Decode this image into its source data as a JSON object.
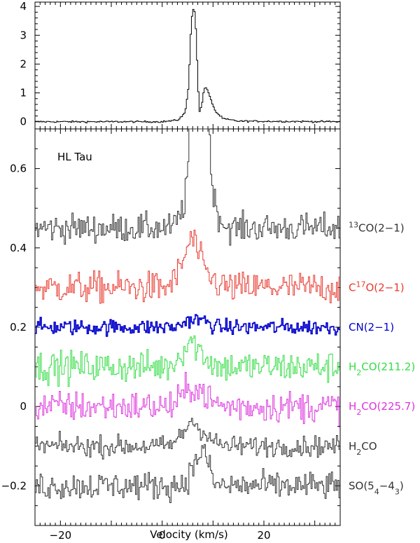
{
  "chart_data": [
    {
      "panel": "top",
      "type": "line",
      "step": true,
      "xlim": [
        -25,
        35
      ],
      "ylim": [
        -0.25,
        4.15
      ],
      "yticks": [
        0,
        1,
        2,
        3,
        4
      ],
      "ytick_labels": [
        "0",
        "1",
        "2",
        "3",
        "4"
      ],
      "grid": false,
      "series": [
        {
          "color": "#000000",
          "points": [
            [
              -25,
              0
            ],
            [
              0,
              0
            ],
            [
              3,
              0.05
            ],
            [
              4.5,
              0.3
            ],
            [
              5.2,
              1.2
            ],
            [
              5.6,
              3.0
            ],
            [
              6.0,
              3.95
            ],
            [
              6.5,
              3.8
            ],
            [
              6.9,
              2.0
            ],
            [
              7.3,
              0.3
            ],
            [
              7.8,
              0.6
            ],
            [
              8.2,
              1.1
            ],
            [
              8.7,
              1.2
            ],
            [
              9.5,
              0.8
            ],
            [
              10.5,
              0.35
            ],
            [
              12,
              0.1
            ],
            [
              15,
              0.02
            ],
            [
              35,
              0
            ]
          ],
          "noise": 0.015
        }
      ]
    },
    {
      "panel": "bottom",
      "type": "line",
      "step": true,
      "source": "HL Tau",
      "xlim": [
        -25,
        35
      ],
      "ylim": [
        -0.3,
        0.7
      ],
      "xticks": [
        -20,
        0,
        20
      ],
      "xtick_labels": [
        "−20",
        "0",
        "20"
      ],
      "yticks": [
        -0.2,
        0,
        0.2,
        0.4,
        0.6
      ],
      "ytick_labels": [
        "−0.2",
        "0",
        "0.2",
        "0.4",
        "0.6"
      ],
      "xlabel": "Velocity (km/s)",
      "grid": false,
      "series": [
        {
          "id": "co13",
          "main": "",
          "sup": "13",
          "tail": "CO(2−1)",
          "color": "#333333",
          "offset": 0.45,
          "noise": 0.018,
          "profile": [
            [
              -25,
              0
            ],
            [
              2,
              0
            ],
            [
              3.5,
              0.03
            ],
            [
              4.5,
              0.07
            ],
            [
              5.3,
              0.2
            ],
            [
              5.8,
              0.45
            ],
            [
              6.5,
              0.6
            ],
            [
              7.5,
              0.5
            ],
            [
              8.5,
              0.4
            ],
            [
              9.3,
              0.25
            ],
            [
              10,
              0.08
            ],
            [
              11.5,
              0.02
            ],
            [
              13,
              0
            ],
            [
              35,
              0
            ]
          ]
        },
        {
          "id": "c17o",
          "main": "C",
          "sup": "17",
          "tail": "O(2−1)",
          "color": "#e8392f",
          "offset": 0.3,
          "noise": 0.02,
          "profile": [
            [
              -25,
              0
            ],
            [
              1,
              0
            ],
            [
              3,
              0.03
            ],
            [
              4.5,
              0.08
            ],
            [
              5.5,
              0.12
            ],
            [
              6.3,
              0.12
            ],
            [
              7.5,
              0.07
            ],
            [
              9,
              0.03
            ],
            [
              11,
              0.01
            ],
            [
              13,
              0
            ],
            [
              35,
              0
            ]
          ]
        },
        {
          "id": "cn",
          "main": "CN(2−1)",
          "sup": "",
          "tail": "",
          "color": "#0000cc",
          "offset": 0.2,
          "noise": 0.01,
          "profile": [
            [
              -25,
              0
            ],
            [
              3,
              0
            ],
            [
              4,
              0.01
            ],
            [
              5,
              0.018
            ],
            [
              8,
              0.018
            ],
            [
              9.5,
              0.008
            ],
            [
              11,
              0
            ],
            [
              35,
              0
            ]
          ]
        },
        {
          "id": "h2co211",
          "main": "H",
          "sub": "2",
          "tail": "CO(211.2)",
          "color": "#33dd44",
          "offset": 0.1,
          "noise": 0.02,
          "profile": [
            [
              -25,
              0
            ],
            [
              1,
              0
            ],
            [
              3,
              0.02
            ],
            [
              4.5,
              0.05
            ],
            [
              5.5,
              0.07
            ],
            [
              6.2,
              0.06
            ],
            [
              7.5,
              0.04
            ],
            [
              9,
              0.02
            ],
            [
              11,
              0
            ],
            [
              35,
              0
            ]
          ]
        },
        {
          "id": "h2co225",
          "main": "H",
          "sub": "2",
          "tail": "CO(225.7)",
          "color": "#dd33dd",
          "offset": 0.0,
          "noise": 0.02,
          "profile": [
            [
              -25,
              0
            ],
            [
              2,
              0
            ],
            [
              3.5,
              0.02
            ],
            [
              5,
              0.04
            ],
            [
              6,
              0.055
            ],
            [
              7,
              0.045
            ],
            [
              8.5,
              0.03
            ],
            [
              10,
              0.01
            ],
            [
              12,
              0
            ],
            [
              35,
              0
            ]
          ]
        },
        {
          "id": "h2co",
          "main": "H",
          "sub": "2",
          "tail": "CO",
          "color": "#333333",
          "offset": -0.1,
          "noise": 0.013,
          "profile": [
            [
              -25,
              0
            ],
            [
              1,
              0
            ],
            [
              3,
              0.015
            ],
            [
              4.5,
              0.04
            ],
            [
              5.8,
              0.07
            ],
            [
              6.8,
              0.05
            ],
            [
              8,
              0.04
            ],
            [
              9.5,
              0.02
            ],
            [
              11,
              0.005
            ],
            [
              13,
              0
            ],
            [
              35,
              0
            ]
          ]
        },
        {
          "id": "so",
          "main": "SO(5",
          "sub1": "4",
          "mid": "−4",
          "sub2": "3",
          "tail": ")",
          "color": "#333333",
          "offset": -0.2,
          "noise": 0.018,
          "profile": [
            [
              -25,
              0
            ],
            [
              3,
              0
            ],
            [
              4.5,
              0.01
            ],
            [
              6,
              0.04
            ],
            [
              7.2,
              0.08
            ],
            [
              8,
              0.09
            ],
            [
              8.8,
              0.07
            ],
            [
              9.8,
              0.02
            ],
            [
              11,
              0
            ],
            [
              35,
              0
            ]
          ]
        }
      ]
    }
  ]
}
